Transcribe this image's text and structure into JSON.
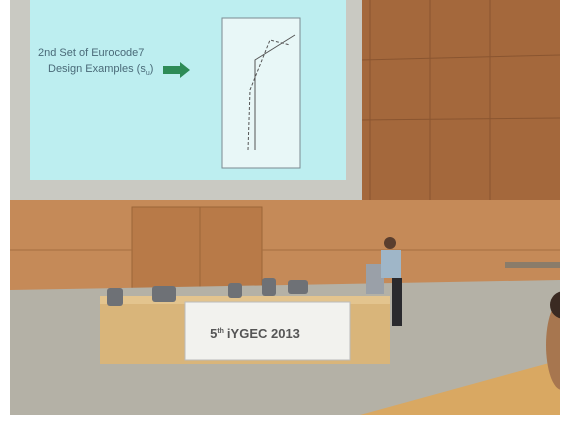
{
  "slide": {
    "line1": "2nd Set of Eurocode7",
    "line2": "Design Examples (s",
    "line2_sub": "u",
    "line2_end": ")"
  },
  "banner": {
    "number": "5",
    "suffix": "th",
    "name": "iYGEC 2013"
  }
}
